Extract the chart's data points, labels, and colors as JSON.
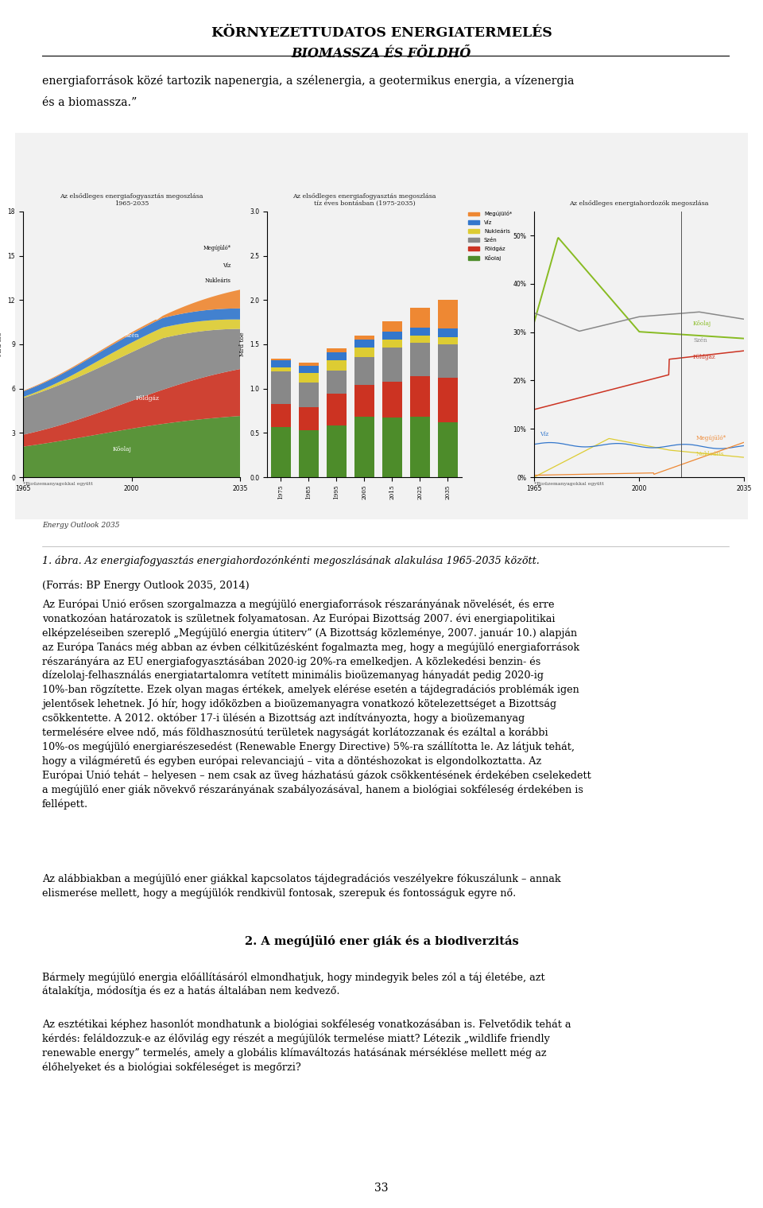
{
  "page_width": 9.6,
  "page_height": 15.19,
  "background_color": "#ffffff",
  "title_line1": "KÖRNYEZETTUDATOS ENERGIATERMELÉS",
  "title_line2": "BIOMASSZA ÉS FÖLDHŐ",
  "title_color": "#000000",
  "separator_color": "#000000",
  "body_text_color": "#000000",
  "intro_text": "energiaforrások közé tartozik napenergia, a szélenergia, a geotermikus energia, a vízenergia\nés a biomassza.”",
  "figure_caption": "1. ábra. Az energiafogyasztás energiahordozónkénti megoszlásának alakulása 1965-2035 között.",
  "figure_source": "(Forrás: BP Energy Outlook 2035, 2014)",
  "main_paragraphs": [
    "Az Európai Unió erősen szorgalmazza a megújüló energiaforrások részarányának növelését, és erre vonatkozóan határozatok is születnek folyamatosan. Az Európai Bizottság 2007. évi energiapolitikai elképzeléseiben szereplő „Megújüló energia útiterv” (A Bizottság közleménye, 2007. január 10.) alapján az Európa Tanács még abban az évben célkitűzésként fogalmazta meg, hogy a megújüló energiaforrások részarányára az EU energiafogyasztásában 2020-ig 20%-ra emelkedjen. A közlekedési benzin- és dízelolaj-felhasználás energiatartalomra vetített minimális bioüzemanyag hányadát pedig 2020-ig 10%-ban rögzítette. Ezek olyan magas értékek, amelyek elérése esetén a tájdegradációs problémák igen jelentősek lehetnek. Jó hír, hogy időközben a bioüzemanyagra vonatkozó kötelezettséget a Bizottság csökkentette. A 2012. október 17-i ülésén a Bizottság azt indítványozta, hogy a bioüzemanyag termelésére elvee ndő, más földhasznosútú területek nagyságát korlátozzanak és ezáltal a korábbi 10%-os megújüló energiarészesedést (Renewable Energy Directive) 5%-ra szállította le. Az látjuk tehát, hogy a világméretű és egyben európai relevanciajú – vita a döntéshozokat is elgondolkoztatta. Az Európai Unió tehát – helyesen – nem csak az üveg házhatású gázok csökkentésének érdekében cselekedett a megújüló ener giák növekvő részarányának szabályozásával, hanem a biológiai sokféleség érdekében is fellépett.",
    "Az alábbiakban a megújüló ener giákkal kapcsolatos tájdegradációs veszélyekre fókuszálunk – annak elismerése mellett, hogy a megújülók rendkivül fontosak, szerepuk és fontosságuk egyre nő."
  ],
  "section_title": "2. A megújüló ener giák és a biodiverzitás",
  "section_paragraphs": [
    "Bármely megújüló energia előállításáról elmondhatjuk, hogy mindegyik beles zól a táj életébe, azt átalakítja, módosítja és ez a hatás általában nem kedvező.",
    "Az esztétikai képhez hasonlót mondhatunk a biológiai sokféleség vonatkozásában is. Felvetődik tehát a kérdés: feláldozzuk-e az élővilág egy részét a megújülók termelése miatt? Létezik „wildlife friendly renewable energy” termelés, amely a globális klímaváltozás hatásának mérséklése mellett még az élőhelyeket és a biológiai sokféleséget is megőrzi?"
  ],
  "page_number": "33",
  "energy_outlook_label": "Energy Outlook 2035",
  "bio_footnote": "*Bioüzemanyagokkal együtt",
  "chart_titles": [
    "Az elsődleges energiafogyasztás megoszlása\n1965-2035",
    "Az elsődleges energiafogyasztás megoszlása\ntíz éves bontásban (1975-2035)",
    "Az elsődleges energiahordozók megoszlása"
  ],
  "labels": [
    "Kőolaj",
    "Földgáz",
    "Szén",
    "Nukleáris",
    "Víz",
    "Megújüló*"
  ]
}
